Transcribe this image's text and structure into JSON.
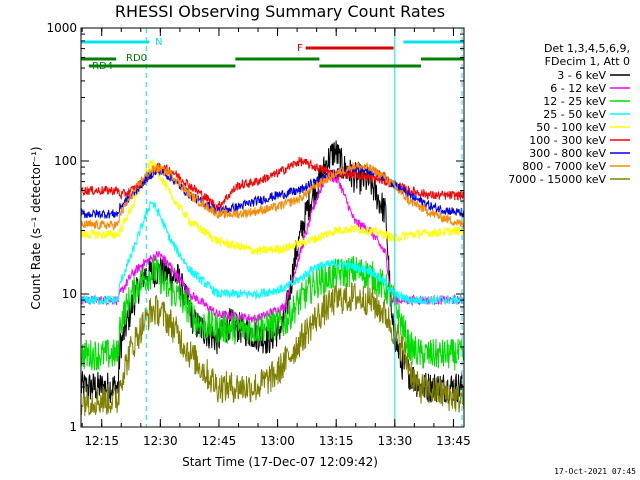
{
  "chart_data": {
    "type": "line",
    "title": "RHESSI Observing Summary Count Rates",
    "xlabel": "Start Time (17-Dec-07 12:09:42)",
    "ylabel": "Count Rate (s⁻¹ detector⁻¹)",
    "yscale": "log",
    "ylim": [
      1,
      1000
    ],
    "xlim_minutes": [
      0,
      98
    ],
    "x_ticks": [
      {
        "m": 5.3,
        "label": "12:15"
      },
      {
        "m": 20.3,
        "label": "12:30"
      },
      {
        "m": 35.3,
        "label": "12:45"
      },
      {
        "m": 50.3,
        "label": "13:00"
      },
      {
        "m": 65.3,
        "label": "13:15"
      },
      {
        "m": 80.3,
        "label": "13:30"
      },
      {
        "m": 95.3,
        "label": "13:45"
      }
    ],
    "y_ticks": [
      {
        "v": 1,
        "label": "1"
      },
      {
        "v": 10,
        "label": "10"
      },
      {
        "v": 100,
        "label": "100"
      },
      {
        "v": 1000,
        "label": "1000"
      }
    ],
    "legend": {
      "header": [
        "Det 1,3,4,5,6,9,",
        "FDecim 1, Att 0"
      ],
      "placement": "right"
    },
    "flags": [
      {
        "label": "N",
        "color": "#00e5e5",
        "segments": [
          [
            0,
            17.5
          ],
          [
            82.5,
            98
          ]
        ]
      },
      {
        "label": "F",
        "color": "#e00000",
        "segments": [
          [
            57.5,
            80
          ]
        ]
      },
      {
        "label": "RD0",
        "color": "#008000",
        "segments": [
          [
            0,
            9
          ],
          [
            39.5,
            61
          ],
          [
            87,
            98
          ]
        ]
      },
      {
        "label": "RD4",
        "color": "#008000",
        "segments": [
          [
            2,
            39.5
          ],
          [
            61,
            87
          ]
        ]
      }
    ],
    "markers": {
      "dashed_cyan_minutes": [
        16.7,
        97.5
      ],
      "solid_cyan_minutes": [
        80.3
      ]
    },
    "series": [
      {
        "name": "3 - 6 keV",
        "color": "#000000",
        "points": [
          [
            0,
            2
          ],
          [
            9.5,
            2
          ],
          [
            10,
            4
          ],
          [
            13,
            8
          ],
          [
            16,
            14
          ],
          [
            20,
            15
          ],
          [
            25,
            13
          ],
          [
            29,
            6
          ],
          [
            35,
            4.5
          ],
          [
            38,
            6
          ],
          [
            44,
            5
          ],
          [
            48,
            4.5
          ],
          [
            52,
            6
          ],
          [
            55,
            20
          ],
          [
            58,
            45
          ],
          [
            61,
            70
          ],
          [
            63,
            100
          ],
          [
            65,
            120
          ],
          [
            67,
            90
          ],
          [
            70,
            75
          ],
          [
            74,
            70
          ],
          [
            78,
            40
          ],
          [
            79.5,
            6
          ],
          [
            82,
            3
          ],
          [
            87,
            2
          ],
          [
            98,
            2
          ]
        ]
      },
      {
        "name": "6 - 12 keV",
        "color": "#ff00ff",
        "points": [
          [
            0,
            9
          ],
          [
            9.5,
            9
          ],
          [
            10,
            10
          ],
          [
            13,
            14
          ],
          [
            16,
            17
          ],
          [
            20,
            20
          ],
          [
            23,
            16
          ],
          [
            28,
            10
          ],
          [
            35,
            7
          ],
          [
            45,
            6.5
          ],
          [
            52,
            8
          ],
          [
            57,
            25
          ],
          [
            60,
            50
          ],
          [
            63,
            80
          ],
          [
            66,
            70
          ],
          [
            70,
            35
          ],
          [
            74,
            30
          ],
          [
            78,
            20
          ],
          [
            79.5,
            9
          ],
          [
            87,
            9
          ],
          [
            98,
            9
          ]
        ]
      },
      {
        "name": "12 - 25 keV",
        "color": "#00dd00",
        "points": [
          [
            0,
            3.5
          ],
          [
            9.5,
            3.5
          ],
          [
            10,
            6
          ],
          [
            13,
            10
          ],
          [
            16,
            13
          ],
          [
            19,
            15
          ],
          [
            22,
            11
          ],
          [
            26,
            9
          ],
          [
            30,
            6
          ],
          [
            35,
            5.5
          ],
          [
            45,
            5.5
          ],
          [
            52,
            6
          ],
          [
            56,
            9
          ],
          [
            60,
            12
          ],
          [
            65,
            14
          ],
          [
            70,
            15
          ],
          [
            74,
            14
          ],
          [
            78,
            11
          ],
          [
            80,
            9
          ],
          [
            84,
            4
          ],
          [
            87,
            3.5
          ],
          [
            98,
            3.5
          ]
        ]
      },
      {
        "name": "25 - 50 keV",
        "color": "#00ffff",
        "points": [
          [
            0,
            9
          ],
          [
            9.5,
            9
          ],
          [
            10,
            12
          ],
          [
            13,
            20
          ],
          [
            16,
            35
          ],
          [
            18,
            50
          ],
          [
            20,
            40
          ],
          [
            23,
            25
          ],
          [
            28,
            15
          ],
          [
            35,
            10
          ],
          [
            45,
            10
          ],
          [
            52,
            11
          ],
          [
            56,
            13
          ],
          [
            60,
            16
          ],
          [
            65,
            17
          ],
          [
            70,
            16
          ],
          [
            74,
            15
          ],
          [
            78,
            12
          ],
          [
            80,
            10
          ],
          [
            84,
            9
          ],
          [
            98,
            9
          ]
        ]
      },
      {
        "name": "50 - 100 keV",
        "color": "#ffff00",
        "points": [
          [
            0,
            28
          ],
          [
            9.5,
            28
          ],
          [
            10,
            30
          ],
          [
            13,
            45
          ],
          [
            16,
            70
          ],
          [
            18,
            100
          ],
          [
            20,
            80
          ],
          [
            23,
            55
          ],
          [
            28,
            35
          ],
          [
            35,
            25
          ],
          [
            45,
            21
          ],
          [
            52,
            22
          ],
          [
            56,
            24
          ],
          [
            60,
            26
          ],
          [
            65,
            30
          ],
          [
            70,
            31
          ],
          [
            74,
            30
          ],
          [
            78,
            28
          ],
          [
            80,
            26
          ],
          [
            84,
            28
          ],
          [
            98,
            30
          ]
        ]
      },
      {
        "name": "100 - 300 keV",
        "color": "#ff0000",
        "points": [
          [
            0,
            60
          ],
          [
            9.5,
            60
          ],
          [
            10,
            55
          ],
          [
            13,
            60
          ],
          [
            16,
            70
          ],
          [
            18,
            80
          ],
          [
            20,
            90
          ],
          [
            23,
            85
          ],
          [
            28,
            65
          ],
          [
            35,
            45
          ],
          [
            40,
            65
          ],
          [
            45,
            70
          ],
          [
            50,
            80
          ],
          [
            56,
            100
          ],
          [
            60,
            90
          ],
          [
            65,
            80
          ],
          [
            70,
            80
          ],
          [
            74,
            75
          ],
          [
            78,
            70
          ],
          [
            84,
            60
          ],
          [
            90,
            55
          ],
          [
            98,
            55
          ]
        ]
      },
      {
        "name": "300 - 800 keV",
        "color": "#0000ee",
        "points": [
          [
            0,
            40
          ],
          [
            9.5,
            40
          ],
          [
            10,
            45
          ],
          [
            13,
            55
          ],
          [
            16,
            70
          ],
          [
            18,
            80
          ],
          [
            20,
            85
          ],
          [
            23,
            75
          ],
          [
            28,
            55
          ],
          [
            35,
            42
          ],
          [
            40,
            45
          ],
          [
            45,
            50
          ],
          [
            50,
            55
          ],
          [
            56,
            60
          ],
          [
            60,
            70
          ],
          [
            65,
            80
          ],
          [
            70,
            90
          ],
          [
            74,
            85
          ],
          [
            78,
            75
          ],
          [
            84,
            55
          ],
          [
            90,
            45
          ],
          [
            98,
            40
          ]
        ]
      },
      {
        "name": "800 - 7000 keV",
        "color": "#ff8800",
        "points": [
          [
            0,
            33
          ],
          [
            9.5,
            33
          ],
          [
            10,
            40
          ],
          [
            13,
            55
          ],
          [
            16,
            75
          ],
          [
            18,
            85
          ],
          [
            20,
            88
          ],
          [
            23,
            80
          ],
          [
            28,
            55
          ],
          [
            35,
            40
          ],
          [
            40,
            40
          ],
          [
            45,
            42
          ],
          [
            50,
            45
          ],
          [
            56,
            52
          ],
          [
            60,
            65
          ],
          [
            65,
            80
          ],
          [
            70,
            92
          ],
          [
            74,
            88
          ],
          [
            78,
            75
          ],
          [
            84,
            50
          ],
          [
            90,
            40
          ],
          [
            98,
            33
          ]
        ]
      },
      {
        "name": "7000 - 15000 keV",
        "color": "#808000",
        "points": [
          [
            0,
            1.6
          ],
          [
            9.5,
            1.6
          ],
          [
            10,
            2.2
          ],
          [
            13,
            4
          ],
          [
            16,
            6
          ],
          [
            18,
            7.5
          ],
          [
            20,
            7.5
          ],
          [
            23,
            6
          ],
          [
            28,
            3.5
          ],
          [
            35,
            2
          ],
          [
            45,
            2
          ],
          [
            50,
            2.5
          ],
          [
            55,
            4
          ],
          [
            60,
            6.5
          ],
          [
            65,
            9
          ],
          [
            70,
            9.5
          ],
          [
            74,
            9
          ],
          [
            78,
            7
          ],
          [
            82,
            4
          ],
          [
            86,
            2
          ],
          [
            98,
            1.6
          ]
        ]
      }
    ]
  },
  "footer": {
    "date": "17-Oct-2021 07:45"
  }
}
